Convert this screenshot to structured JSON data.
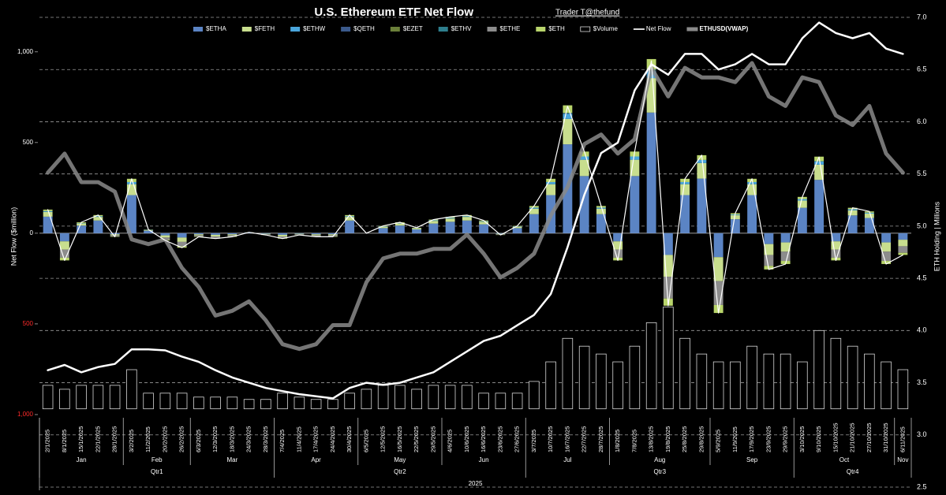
{
  "chart_data": {
    "type": "combo",
    "title": "U.S. Ethereum ETF Net Flow",
    "subtitle": "Trader T@thefund",
    "y_label": "Net Flow ($million)",
    "y2_label": "ETH Holding | Millions",
    "categories": [
      "2/1/2025",
      "8/1/2025",
      "15/1/2025",
      "22/1/2025",
      "28/1/2025",
      "3/2/2025",
      "11/2/2025",
      "20/2/2025",
      "26/2/2025",
      "6/3/2025",
      "12/3/2025",
      "18/3/2025",
      "24/3/2025",
      "28/3/2025",
      "7/4/2025",
      "11/4/2025",
      "17/4/2025",
      "24/4/2025",
      "30/4/2025",
      "6/5/2025",
      "12/5/2025",
      "16/5/2025",
      "22/5/2025",
      "29/5/2025",
      "4/6/2025",
      "10/6/2025",
      "16/6/2025",
      "23/6/2025",
      "27/6/2025",
      "3/7/2025",
      "10/7/2025",
      "16/7/2025",
      "22/7/2025",
      "28/7/2025",
      "1/8/2025",
      "7/8/2025",
      "13/8/2025",
      "19/8/2025",
      "25/8/2025",
      "29/8/2025",
      "5/9/2025",
      "11/9/2025",
      "17/9/2025",
      "23/9/2025",
      "29/9/2025",
      "3/10/2025",
      "9/10/2025",
      "15/10/2025",
      "21/10/2025",
      "27/10/2025",
      "31/10/2025",
      "6/11/2025"
    ],
    "months": [
      "Jan",
      "Feb",
      "Mar",
      "Apr",
      "May",
      "Jun",
      "Jul",
      "Aug",
      "Sep",
      "Oct",
      "Nov"
    ],
    "quarters": [
      "Qtr1",
      "Qtr2",
      "Qtr3",
      "Qtr4"
    ],
    "year": "2025",
    "ylim": [
      -1400,
      1190
    ],
    "yticks": [
      {
        "value": 1000,
        "label": "1,000"
      },
      500,
      0,
      {
        "value": -500,
        "label": "500"
      },
      {
        "value": -1000,
        "label": "1,000"
      }
    ],
    "negative_tick_color": "#ff2a2a",
    "y2lim": [
      2.5,
      7.0
    ],
    "y2ticks": [
      {
        "value": 7,
        "label": "7.0"
      },
      {
        "value": 6.5,
        "label": "6.5"
      },
      {
        "value": 6,
        "label": "6.0"
      },
      {
        "value": 5.5,
        "label": "5.5"
      },
      {
        "value": 5,
        "label": "5.0"
      },
      {
        "value": 4.5,
        "label": "4.5"
      },
      {
        "value": 4,
        "label": "4.0"
      },
      {
        "value": 3.5,
        "label": "3.5"
      },
      {
        "value": 3,
        "label": "3.0"
      },
      {
        "value": 2.5,
        "label": "2.5"
      }
    ],
    "y3lim": [
      100,
      5030
    ],
    "y4lim": [
      -1,
      5
    ],
    "grid": true,
    "legend": "top",
    "series": [
      {
        "name": "$ETHA",
        "type": "bar",
        "color": "#5b84c4",
        "values": [
          91,
          -45,
          42,
          70,
          -6,
          210,
          14,
          -12,
          -24,
          -6,
          -9,
          -6,
          4,
          -3,
          -9,
          -3,
          -6,
          -6,
          70,
          0,
          28,
          42,
          21,
          53,
          63,
          70,
          49,
          -3,
          28,
          105,
          210,
          490,
          315,
          105,
          -45,
          315,
          665,
          -120,
          210,
          301,
          -132,
          77,
          210,
          -60,
          -51,
          140,
          294,
          -45,
          98,
          84,
          -51,
          -36
        ]
      },
      {
        "name": "$FETH",
        "type": "bar",
        "color": "#c8de8e",
        "values": [
          26,
          -45,
          12,
          20,
          -6,
          60,
          4,
          -12,
          -24,
          -6,
          -9,
          -6,
          1,
          -3,
          -9,
          -3,
          -6,
          -6,
          20,
          0,
          8,
          12,
          6,
          15,
          18,
          20,
          14,
          -3,
          8,
          30,
          60,
          140,
          90,
          30,
          -45,
          90,
          190,
          -120,
          60,
          86,
          -132,
          22,
          60,
          -60,
          -51,
          40,
          84,
          -45,
          28,
          24,
          -51,
          -36
        ]
      },
      {
        "name": "$ETHW",
        "type": "bar",
        "color": "#4aa6dc",
        "values": [
          5,
          0,
          2,
          4,
          0,
          12,
          1,
          0,
          0,
          0,
          0,
          0,
          0,
          0,
          0,
          0,
          0,
          0,
          4,
          0,
          2,
          2,
          1,
          3,
          4,
          4,
          3,
          0,
          2,
          6,
          12,
          28,
          18,
          6,
          0,
          18,
          38,
          0,
          12,
          17,
          0,
          4,
          12,
          0,
          0,
          8,
          17,
          0,
          6,
          5,
          0,
          0
        ]
      },
      {
        "name": "$QETH",
        "type": "bar",
        "color": "#3b5a8c",
        "values": [
          0,
          0,
          0,
          0,
          0,
          0,
          0,
          0,
          0,
          0,
          0,
          0,
          0,
          0,
          0,
          0,
          0,
          0,
          0,
          0,
          0,
          0,
          0,
          0,
          0,
          0,
          0,
          0,
          0,
          0,
          0,
          2,
          0,
          0,
          0,
          0,
          3,
          0,
          0,
          0,
          0,
          0,
          0,
          0,
          0,
          0,
          0,
          0,
          0,
          0,
          0,
          0
        ]
      },
      {
        "name": "$EZET",
        "type": "bar",
        "color": "#6b803a",
        "values": [
          0,
          0,
          0,
          0,
          0,
          0,
          0,
          0,
          0,
          0,
          0,
          0,
          0,
          0,
          0,
          0,
          0,
          0,
          0,
          0,
          0,
          0,
          0,
          0,
          0,
          0,
          0,
          0,
          0,
          0,
          0,
          0,
          0,
          0,
          0,
          0,
          2,
          0,
          0,
          0,
          0,
          0,
          0,
          0,
          0,
          0,
          0,
          0,
          0,
          0,
          0,
          0
        ]
      },
      {
        "name": "$ETHV",
        "type": "bar",
        "color": "#2e7f8e",
        "values": [
          0,
          0,
          0,
          0,
          0,
          0,
          0,
          0,
          0,
          0,
          0,
          0,
          0,
          0,
          0,
          0,
          0,
          0,
          0,
          0,
          0,
          0,
          0,
          0,
          0,
          0,
          0,
          0,
          0,
          0,
          0,
          3,
          0,
          0,
          0,
          0,
          5,
          0,
          0,
          0,
          0,
          0,
          0,
          0,
          0,
          0,
          2,
          0,
          0,
          0,
          0,
          0
        ]
      },
      {
        "name": "$ETHE",
        "type": "bar",
        "color": "#8c8c8c",
        "values": [
          0,
          -45,
          0,
          0,
          -6,
          0,
          0,
          -12,
          -24,
          -6,
          -9,
          -6,
          0,
          -3,
          -9,
          -3,
          -6,
          -6,
          0,
          0,
          0,
          0,
          0,
          0,
          0,
          0,
          0,
          -3,
          0,
          0,
          0,
          0,
          0,
          0,
          -45,
          0,
          0,
          -120,
          0,
          0,
          -132,
          0,
          0,
          -60,
          -51,
          0,
          0,
          -45,
          0,
          0,
          -51,
          -36
        ]
      },
      {
        "name": "$ETH",
        "type": "bar",
        "color": "#b9d56c",
        "values": [
          8,
          -15,
          4,
          6,
          -2,
          18,
          1,
          -4,
          -8,
          -2,
          -3,
          -2,
          0,
          -1,
          -3,
          -1,
          -2,
          -2,
          6,
          0,
          2,
          4,
          2,
          4,
          5,
          6,
          4,
          -1,
          2,
          9,
          18,
          42,
          27,
          9,
          -15,
          27,
          57,
          -40,
          18,
          26,
          -44,
          7,
          18,
          -20,
          -17,
          12,
          25,
          -15,
          8,
          7,
          -17,
          -12
        ]
      },
      {
        "name": "$Volume",
        "type": "bar",
        "axis": "y4",
        "color": "#000000",
        "stroke": "#d8d8d8",
        "values": [
          0.3,
          0.25,
          0.3,
          0.3,
          0.3,
          0.5,
          0.2,
          0.2,
          0.2,
          0.15,
          0.15,
          0.15,
          0.12,
          0.12,
          0.2,
          0.15,
          0.12,
          0.12,
          0.2,
          0.25,
          0.3,
          0.3,
          0.25,
          0.3,
          0.3,
          0.3,
          0.2,
          0.2,
          0.2,
          0.35,
          0.6,
          0.9,
          0.8,
          0.7,
          0.6,
          0.8,
          1.1,
          1.3,
          0.9,
          0.7,
          0.6,
          0.6,
          0.8,
          0.7,
          0.7,
          0.6,
          1.0,
          0.9,
          0.8,
          0.7,
          0.6,
          0.5
        ]
      },
      {
        "name": "Net Flow",
        "type": "line",
        "color": "#ffffff",
        "line_width": 1.2,
        "values": [
          130,
          -150,
          60,
          100,
          -20,
          300,
          20,
          -40,
          -80,
          -20,
          -30,
          -20,
          5,
          -10,
          -30,
          -10,
          -20,
          -20,
          100,
          0,
          40,
          60,
          30,
          75,
          90,
          100,
          70,
          -10,
          40,
          150,
          300,
          700,
          450,
          150,
          -150,
          450,
          950,
          -400,
          300,
          430,
          -440,
          110,
          300,
          -200,
          -170,
          200,
          420,
          -150,
          140,
          120,
          -170,
          -120
        ]
      },
      {
        "name": "ETHUSD(VWAP)",
        "type": "line",
        "axis": "y3",
        "color": "#8a8a8a",
        "line_width": 5,
        "values": [
          3400,
          3600,
          3300,
          3300,
          3200,
          2700,
          2650,
          2700,
          2400,
          2200,
          1900,
          1950,
          2050,
          1850,
          1600,
          1550,
          1600,
          1800,
          1800,
          2250,
          2500,
          2550,
          2550,
          2600,
          2600,
          2750,
          2550,
          2300,
          2400,
          2550,
          2950,
          3250,
          3700,
          3800,
          3600,
          3750,
          4500,
          4200,
          4500,
          4400,
          4400,
          4350,
          4550,
          4200,
          4100,
          4400,
          4350,
          4000,
          3900,
          4100,
          3600,
          3400
        ]
      },
      {
        "type": "line",
        "axis": "y2",
        "color": "#ffffff",
        "line_width": 2.5,
        "values": [
          3.62,
          3.67,
          3.6,
          3.65,
          3.68,
          3.82,
          3.82,
          3.81,
          3.75,
          3.7,
          3.62,
          3.55,
          3.5,
          3.45,
          3.42,
          3.39,
          3.37,
          3.35,
          3.45,
          3.5,
          3.48,
          3.5,
          3.55,
          3.6,
          3.7,
          3.8,
          3.9,
          3.95,
          4.05,
          4.15,
          4.35,
          4.8,
          5.3,
          5.7,
          5.8,
          6.3,
          6.55,
          6.45,
          6.65,
          6.65,
          6.5,
          6.55,
          6.65,
          6.55,
          6.55,
          6.8,
          6.95,
          6.85,
          6.8,
          6.85,
          6.7,
          6.65
        ]
      }
    ]
  }
}
